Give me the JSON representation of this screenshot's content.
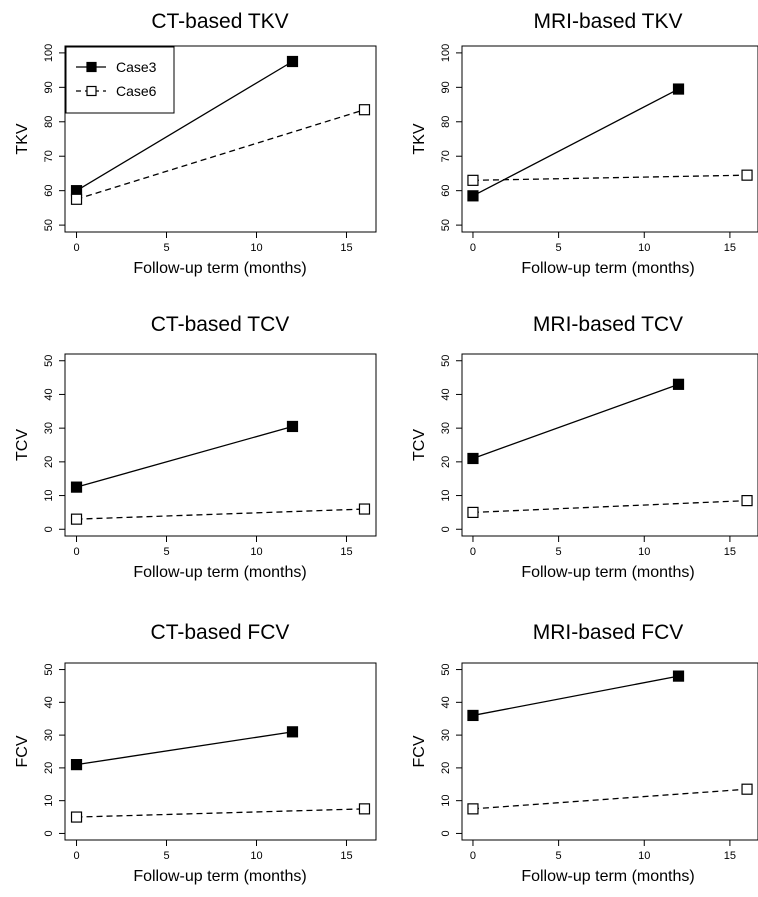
{
  "chart_data": [
    {
      "type": "line",
      "title": "CT-based TKV",
      "xlabel": "Follow-up term (months)",
      "ylabel": "TKV",
      "xlim": [
        0,
        16
      ],
      "ylim": [
        50,
        100
      ],
      "xticks": [
        "0",
        "5",
        "10",
        "15"
      ],
      "yticks": [
        "50",
        "60",
        "70",
        "80",
        "90",
        "100"
      ],
      "legend": {
        "position": "top-left",
        "entries": [
          "Case3",
          "Case6"
        ]
      },
      "series": [
        {
          "name": "Case3",
          "marker": "filled-square",
          "line": "solid",
          "x": [
            0,
            12
          ],
          "y": [
            60,
            97.5
          ]
        },
        {
          "name": "Case6",
          "marker": "open-square",
          "line": "dashed",
          "x": [
            0,
            16
          ],
          "y": [
            57.5,
            83.5
          ]
        }
      ]
    },
    {
      "type": "line",
      "title": "MRI-based TKV",
      "xlabel": "Follow-up term (months)",
      "ylabel": "TKV",
      "xlim": [
        0,
        16
      ],
      "ylim": [
        50,
        100
      ],
      "xticks": [
        "0",
        "5",
        "10",
        "15"
      ],
      "yticks": [
        "50",
        "60",
        "70",
        "80",
        "90",
        "100"
      ],
      "series": [
        {
          "name": "Case3",
          "marker": "filled-square",
          "line": "solid",
          "x": [
            0,
            12
          ],
          "y": [
            58.5,
            89.5
          ]
        },
        {
          "name": "Case6",
          "marker": "open-square",
          "line": "dashed",
          "x": [
            0,
            16
          ],
          "y": [
            63,
            64.5
          ]
        }
      ]
    },
    {
      "type": "line",
      "title": "CT-based TCV",
      "xlabel": "Follow-up term (months)",
      "ylabel": "TCV",
      "xlim": [
        0,
        16
      ],
      "ylim": [
        0,
        50
      ],
      "xticks": [
        "0",
        "5",
        "10",
        "15"
      ],
      "yticks": [
        "0",
        "10",
        "20",
        "30",
        "40",
        "50"
      ],
      "series": [
        {
          "name": "Case3",
          "marker": "filled-square",
          "line": "solid",
          "x": [
            0,
            12
          ],
          "y": [
            12.5,
            30.5
          ]
        },
        {
          "name": "Case6",
          "marker": "open-square",
          "line": "dashed",
          "x": [
            0,
            16
          ],
          "y": [
            3,
            6
          ]
        }
      ]
    },
    {
      "type": "line",
      "title": "MRI-based TCV",
      "xlabel": "Follow-up term (months)",
      "ylabel": "TCV",
      "xlim": [
        0,
        16
      ],
      "ylim": [
        0,
        50
      ],
      "xticks": [
        "0",
        "5",
        "10",
        "15"
      ],
      "yticks": [
        "0",
        "10",
        "20",
        "30",
        "40",
        "50"
      ],
      "series": [
        {
          "name": "Case3",
          "marker": "filled-square",
          "line": "solid",
          "x": [
            0,
            12
          ],
          "y": [
            21,
            43
          ]
        },
        {
          "name": "Case6",
          "marker": "open-square",
          "line": "dashed",
          "x": [
            0,
            16
          ],
          "y": [
            5,
            8.5
          ]
        }
      ]
    },
    {
      "type": "line",
      "title": "CT-based FCV",
      "xlabel": "Follow-up term (months)",
      "ylabel": "FCV",
      "xlim": [
        0,
        16
      ],
      "ylim": [
        0,
        50
      ],
      "xticks": [
        "0",
        "5",
        "10",
        "15"
      ],
      "yticks": [
        "0",
        "10",
        "20",
        "30",
        "40",
        "50"
      ],
      "series": [
        {
          "name": "Case3",
          "marker": "filled-square",
          "line": "solid",
          "x": [
            0,
            12
          ],
          "y": [
            21,
            31
          ]
        },
        {
          "name": "Case6",
          "marker": "open-square",
          "line": "dashed",
          "x": [
            0,
            16
          ],
          "y": [
            5,
            7.5
          ]
        }
      ]
    },
    {
      "type": "line",
      "title": "MRI-based FCV",
      "xlabel": "Follow-up term (months)",
      "ylabel": "FCV",
      "xlim": [
        0,
        16
      ],
      "ylim": [
        0,
        50
      ],
      "xticks": [
        "0",
        "5",
        "10",
        "15"
      ],
      "yticks": [
        "0",
        "10",
        "20",
        "30",
        "40",
        "50"
      ],
      "series": [
        {
          "name": "Case3",
          "marker": "filled-square",
          "line": "solid",
          "x": [
            0,
            12
          ],
          "y": [
            36,
            48
          ]
        },
        {
          "name": "Case6",
          "marker": "open-square",
          "line": "dashed",
          "x": [
            0,
            16
          ],
          "y": [
            7.5,
            13.5
          ]
        }
      ]
    }
  ]
}
